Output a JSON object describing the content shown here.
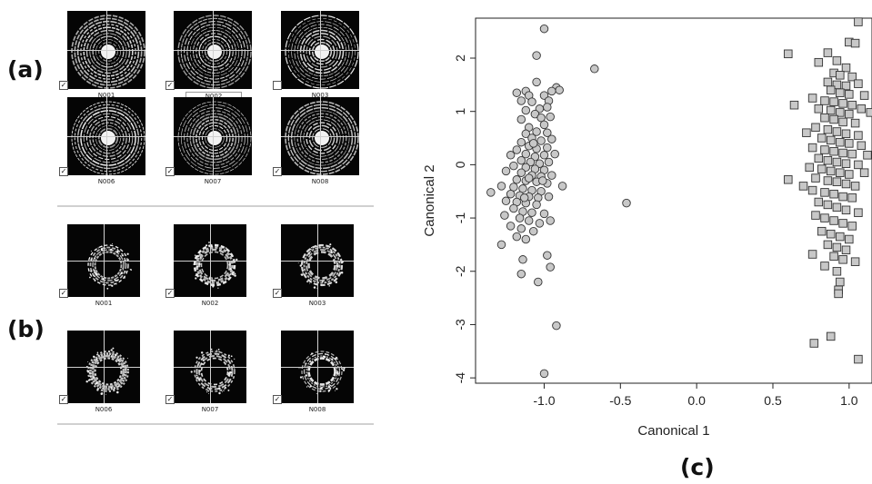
{
  "panels": {
    "a_label": "(a)",
    "b_label": "(b)",
    "c_label": "(c)"
  },
  "thumbnails_a": [
    {
      "label": "N001",
      "checked": "✓",
      "highlighted": false
    },
    {
      "label": "N002",
      "checked": "✓",
      "highlighted": true
    },
    {
      "label": "N003",
      "checked": "",
      "highlighted": false
    },
    {
      "label": "N006",
      "checked": "✓",
      "highlighted": false
    },
    {
      "label": "N007",
      "checked": "✓",
      "highlighted": false
    },
    {
      "label": "N008",
      "checked": "✓",
      "highlighted": false
    }
  ],
  "thumbnails_b": [
    {
      "label": "N001",
      "checked": "✓",
      "highlighted": false
    },
    {
      "label": "N002",
      "checked": "✓",
      "highlighted": false
    },
    {
      "label": "N003",
      "checked": "✓",
      "highlighted": false
    },
    {
      "label": "N006",
      "checked": "✓",
      "highlighted": false
    },
    {
      "label": "N007",
      "checked": "✓",
      "highlighted": false
    },
    {
      "label": "N008",
      "checked": "✓",
      "highlighted": false
    }
  ],
  "chart_data": {
    "type": "scatter",
    "title": "",
    "xlabel": "Canonical 1",
    "ylabel": "Canonical 2",
    "xlim": [
      -1.45,
      1.15
    ],
    "ylim": [
      -4.1,
      2.75
    ],
    "xticks": [
      "-1.0",
      "-0.5",
      "0.0",
      "0.5",
      "1.0"
    ],
    "xtick_values": [
      -1.0,
      -0.5,
      0.0,
      0.5,
      1.0
    ],
    "yticks": [
      "-4",
      "-3",
      "-2",
      "-1",
      "0",
      "1",
      "2"
    ],
    "ytick_values": [
      -4,
      -3,
      -2,
      -1,
      0,
      1,
      2
    ],
    "colors": {
      "marker_fill": "#c8c8c8",
      "marker_stroke": "#333333"
    },
    "series": [
      {
        "marker": "circle",
        "points": [
          [
            -1.0,
            2.55
          ],
          [
            -1.05,
            2.05
          ],
          [
            -0.67,
            1.8
          ],
          [
            -0.92,
            1.45
          ],
          [
            -0.9,
            1.4
          ],
          [
            -0.95,
            1.38
          ],
          [
            -1.12,
            1.38
          ],
          [
            -1.18,
            1.35
          ],
          [
            -1.05,
            1.55
          ],
          [
            -1.1,
            1.3
          ],
          [
            -1.0,
            1.3
          ],
          [
            -0.97,
            1.2
          ],
          [
            -1.15,
            1.2
          ],
          [
            -1.08,
            1.18
          ],
          [
            -1.03,
            1.05
          ],
          [
            -0.98,
            1.08
          ],
          [
            -1.12,
            1.02
          ],
          [
            -1.06,
            0.95
          ],
          [
            -1.02,
            0.88
          ],
          [
            -0.96,
            0.9
          ],
          [
            -1.15,
            0.85
          ],
          [
            -1.0,
            0.75
          ],
          [
            -1.1,
            0.7
          ],
          [
            -1.05,
            0.62
          ],
          [
            -0.98,
            0.6
          ],
          [
            -1.12,
            0.58
          ],
          [
            -1.08,
            0.5
          ],
          [
            -1.02,
            0.45
          ],
          [
            -0.95,
            0.48
          ],
          [
            -1.15,
            0.42
          ],
          [
            -1.1,
            0.35
          ],
          [
            -1.05,
            0.3
          ],
          [
            -0.98,
            0.32
          ],
          [
            -1.18,
            0.28
          ],
          [
            -1.22,
            0.18
          ],
          [
            -1.12,
            0.2
          ],
          [
            -1.06,
            0.15
          ],
          [
            -1.0,
            0.18
          ],
          [
            -0.93,
            0.2
          ],
          [
            -1.15,
            0.08
          ],
          [
            -1.09,
            0.05
          ],
          [
            -1.03,
            0.02
          ],
          [
            -0.97,
            0.05
          ],
          [
            -1.2,
            -0.02
          ],
          [
            -1.12,
            -0.05
          ],
          [
            -1.06,
            -0.08
          ],
          [
            -1.0,
            -0.1
          ],
          [
            -1.25,
            -0.12
          ],
          [
            -1.15,
            -0.15
          ],
          [
            -1.08,
            -0.2
          ],
          [
            -1.02,
            -0.22
          ],
          [
            -0.95,
            -0.2
          ],
          [
            -1.18,
            -0.28
          ],
          [
            -1.12,
            -0.3
          ],
          [
            -1.05,
            -0.32
          ],
          [
            -0.98,
            -0.35
          ],
          [
            -0.88,
            -0.4
          ],
          [
            -1.28,
            -0.4
          ],
          [
            -1.2,
            -0.42
          ],
          [
            -1.14,
            -0.45
          ],
          [
            -1.08,
            -0.48
          ],
          [
            -1.02,
            -0.5
          ],
          [
            -1.35,
            -0.52
          ],
          [
            -1.22,
            -0.55
          ],
          [
            -1.16,
            -0.58
          ],
          [
            -1.1,
            -0.6
          ],
          [
            -1.04,
            -0.62
          ],
          [
            -0.97,
            -0.6
          ],
          [
            -1.25,
            -0.68
          ],
          [
            -1.18,
            -0.7
          ],
          [
            -1.12,
            -0.72
          ],
          [
            -1.05,
            -0.75
          ],
          [
            -0.46,
            -0.72
          ],
          [
            -1.2,
            -0.82
          ],
          [
            -1.14,
            -0.88
          ],
          [
            -1.08,
            -0.9
          ],
          [
            -1.0,
            -0.92
          ],
          [
            -1.26,
            -0.95
          ],
          [
            -1.16,
            -1.0
          ],
          [
            -1.1,
            -1.05
          ],
          [
            -1.03,
            -1.1
          ],
          [
            -0.96,
            -1.05
          ],
          [
            -1.22,
            -1.15
          ],
          [
            -1.15,
            -1.2
          ],
          [
            -1.07,
            -1.25
          ],
          [
            -1.18,
            -1.35
          ],
          [
            -1.12,
            -1.4
          ],
          [
            -1.28,
            -1.5
          ],
          [
            -0.98,
            -1.7
          ],
          [
            -1.14,
            -1.78
          ],
          [
            -0.96,
            -1.92
          ],
          [
            -1.15,
            -2.05
          ],
          [
            -1.04,
            -2.2
          ],
          [
            -0.92,
            -3.02
          ],
          [
            -1.0,
            -3.92
          ],
          [
            -1.1,
            -0.25
          ],
          [
            -1.07,
            0.4
          ],
          [
            -1.13,
            -0.62
          ],
          [
            -1.01,
            -0.3
          ]
        ]
      },
      {
        "marker": "square",
        "points": [
          [
            1.06,
            2.68
          ],
          [
            0.6,
            2.08
          ],
          [
            0.86,
            2.1
          ],
          [
            1.0,
            2.3
          ],
          [
            1.04,
            2.28
          ],
          [
            0.8,
            1.92
          ],
          [
            0.92,
            1.95
          ],
          [
            0.98,
            1.82
          ],
          [
            0.9,
            1.72
          ],
          [
            0.94,
            1.68
          ],
          [
            1.02,
            1.65
          ],
          [
            0.86,
            1.55
          ],
          [
            0.92,
            1.5
          ],
          [
            0.98,
            1.48
          ],
          [
            1.06,
            1.52
          ],
          [
            0.88,
            1.4
          ],
          [
            0.94,
            1.35
          ],
          [
            1.0,
            1.32
          ],
          [
            1.1,
            1.3
          ],
          [
            0.76,
            1.25
          ],
          [
            0.84,
            1.2
          ],
          [
            0.9,
            1.18
          ],
          [
            0.96,
            1.15
          ],
          [
            1.02,
            1.12
          ],
          [
            0.64,
            1.12
          ],
          [
            0.8,
            1.05
          ],
          [
            0.88,
            1.02
          ],
          [
            0.94,
            0.98
          ],
          [
            1.0,
            0.95
          ],
          [
            1.14,
            0.98
          ],
          [
            0.84,
            0.88
          ],
          [
            0.9,
            0.85
          ],
          [
            0.96,
            0.8
          ],
          [
            1.04,
            0.78
          ],
          [
            0.78,
            0.7
          ],
          [
            0.86,
            0.66
          ],
          [
            0.92,
            0.62
          ],
          [
            0.98,
            0.58
          ],
          [
            1.06,
            0.55
          ],
          [
            0.82,
            0.5
          ],
          [
            0.88,
            0.46
          ],
          [
            0.94,
            0.42
          ],
          [
            1.0,
            0.4
          ],
          [
            1.08,
            0.36
          ],
          [
            0.76,
            0.32
          ],
          [
            0.84,
            0.28
          ],
          [
            0.9,
            0.25
          ],
          [
            0.96,
            0.22
          ],
          [
            1.02,
            0.2
          ],
          [
            1.12,
            0.18
          ],
          [
            0.8,
            0.12
          ],
          [
            0.86,
            0.08
          ],
          [
            0.92,
            0.05
          ],
          [
            0.98,
            0.02
          ],
          [
            1.06,
            0.0
          ],
          [
            0.74,
            -0.05
          ],
          [
            0.82,
            -0.08
          ],
          [
            0.88,
            -0.12
          ],
          [
            0.94,
            -0.15
          ],
          [
            1.0,
            -0.18
          ],
          [
            1.1,
            -0.15
          ],
          [
            0.6,
            -0.28
          ],
          [
            0.78,
            -0.25
          ],
          [
            0.86,
            -0.3
          ],
          [
            0.92,
            -0.32
          ],
          [
            0.98,
            -0.36
          ],
          [
            1.04,
            -0.4
          ],
          [
            0.76,
            -0.48
          ],
          [
            0.84,
            -0.52
          ],
          [
            0.9,
            -0.55
          ],
          [
            0.96,
            -0.6
          ],
          [
            1.02,
            -0.62
          ],
          [
            0.8,
            -0.7
          ],
          [
            0.86,
            -0.75
          ],
          [
            0.92,
            -0.8
          ],
          [
            0.98,
            -0.85
          ],
          [
            1.06,
            -0.9
          ],
          [
            0.78,
            -0.95
          ],
          [
            0.84,
            -1.0
          ],
          [
            0.9,
            -1.05
          ],
          [
            0.96,
            -1.1
          ],
          [
            1.02,
            -1.15
          ],
          [
            0.82,
            -1.25
          ],
          [
            0.88,
            -1.3
          ],
          [
            0.94,
            -1.35
          ],
          [
            1.0,
            -1.4
          ],
          [
            0.86,
            -1.5
          ],
          [
            0.92,
            -1.55
          ],
          [
            0.98,
            -1.6
          ],
          [
            0.76,
            -1.68
          ],
          [
            0.9,
            -1.72
          ],
          [
            0.96,
            -1.78
          ],
          [
            1.04,
            -1.82
          ],
          [
            0.84,
            -1.9
          ],
          [
            0.92,
            -2.0
          ],
          [
            0.94,
            -2.2
          ],
          [
            0.93,
            -2.35
          ],
          [
            0.93,
            -2.42
          ],
          [
            0.88,
            -3.22
          ],
          [
            0.77,
            -3.35
          ],
          [
            1.06,
            -3.65
          ],
          [
            0.72,
            0.6
          ],
          [
            1.08,
            1.05
          ],
          [
            0.7,
            -0.4
          ]
        ]
      }
    ]
  }
}
